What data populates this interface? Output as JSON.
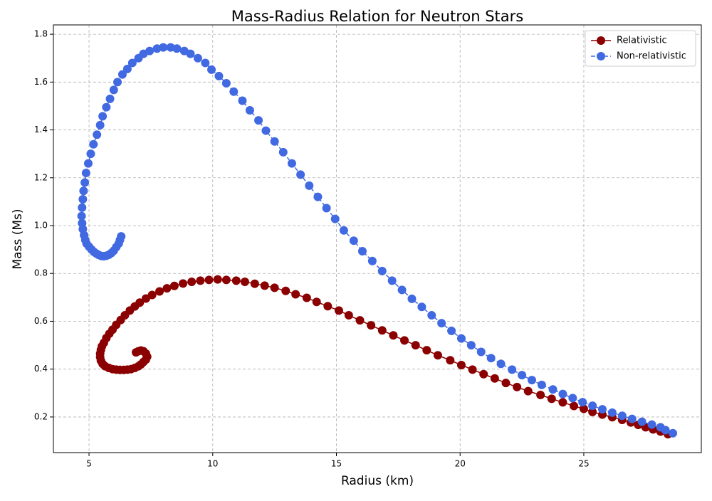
{
  "chart_data": {
    "type": "line",
    "title": "Mass-Radius Relation for Neutron Stars",
    "xlabel": "Radius (km)",
    "ylabel": "Mass (Ms)",
    "xlim": [
      3.56,
      29.75
    ],
    "ylim": [
      0.051,
      1.839
    ],
    "xticks": [
      5,
      10,
      15,
      20,
      25
    ],
    "yticks": [
      0.2,
      0.4,
      0.6,
      0.8,
      {
        "value": 1.0,
        "label": "1.0"
      },
      1.2,
      1.4,
      1.6,
      1.8
    ],
    "grid": true,
    "legend": "upper right",
    "series": [
      {
        "name": "Relativistic",
        "color": "#8b0000",
        "linestyle": "solid",
        "x": [
          6.9,
          7.0,
          7.1,
          7.2,
          7.3,
          7.35,
          7.3,
          7.2,
          7.1,
          7.0,
          6.85,
          6.7,
          6.55,
          6.4,
          6.25,
          6.1,
          5.95,
          5.8,
          5.65,
          5.55,
          5.48,
          5.45,
          5.45,
          5.48,
          5.52,
          5.6,
          5.7,
          5.82,
          5.95,
          6.1,
          6.28,
          6.45,
          6.65,
          6.85,
          7.05,
          7.3,
          7.55,
          7.85,
          8.15,
          8.45,
          8.8,
          9.15,
          9.5,
          9.85,
          10.2,
          10.55,
          10.95,
          11.3,
          11.7,
          12.1,
          12.5,
          12.95,
          13.35,
          13.8,
          14.2,
          14.65,
          15.1,
          15.5,
          15.95,
          16.4,
          16.85,
          17.3,
          17.75,
          18.2,
          18.65,
          19.1,
          19.6,
          20.05,
          20.5,
          20.95,
          21.4,
          21.85,
          22.3,
          22.75,
          23.25,
          23.7,
          24.15,
          24.6,
          25.0,
          25.35,
          25.75,
          26.15,
          26.55,
          26.9,
          27.2,
          27.5,
          27.8,
          28.1,
          28.4
        ],
        "values": [
          0.47,
          0.475,
          0.478,
          0.475,
          0.465,
          0.452,
          0.44,
          0.43,
          0.42,
          0.412,
          0.405,
          0.4,
          0.398,
          0.397,
          0.397,
          0.398,
          0.4,
          0.405,
          0.412,
          0.422,
          0.435,
          0.45,
          0.465,
          0.48,
          0.495,
          0.51,
          0.53,
          0.548,
          0.565,
          0.585,
          0.605,
          0.625,
          0.645,
          0.662,
          0.678,
          0.695,
          0.71,
          0.725,
          0.738,
          0.748,
          0.758,
          0.765,
          0.77,
          0.773,
          0.775,
          0.773,
          0.77,
          0.765,
          0.757,
          0.749,
          0.74,
          0.727,
          0.713,
          0.698,
          0.681,
          0.663,
          0.645,
          0.625,
          0.604,
          0.583,
          0.562,
          0.541,
          0.52,
          0.5,
          0.479,
          0.458,
          0.437,
          0.417,
          0.398,
          0.379,
          0.361,
          0.342,
          0.325,
          0.308,
          0.292,
          0.276,
          0.261,
          0.246,
          0.234,
          0.221,
          0.21,
          0.199,
          0.188,
          0.177,
          0.167,
          0.157,
          0.148,
          0.139,
          0.128
        ]
      },
      {
        "name": "Non-relativistic",
        "color": "#4169e1",
        "linestyle": "dashed",
        "x": [
          6.3,
          6.25,
          6.2,
          6.1,
          6.0,
          5.9,
          5.8,
          5.7,
          5.6,
          5.5,
          5.4,
          5.3,
          5.2,
          5.1,
          5.0,
          4.9,
          4.85,
          4.8,
          4.75,
          4.72,
          4.7,
          4.72,
          4.75,
          4.78,
          4.83,
          4.88,
          4.97,
          5.07,
          5.18,
          5.32,
          5.45,
          5.55,
          5.7,
          5.85,
          6.0,
          6.15,
          6.35,
          6.55,
          6.75,
          7.0,
          7.2,
          7.45,
          7.75,
          8.0,
          8.3,
          8.55,
          8.85,
          9.1,
          9.4,
          9.7,
          9.95,
          10.25,
          10.55,
          10.85,
          11.2,
          11.5,
          11.85,
          12.15,
          12.5,
          12.85,
          13.2,
          13.55,
          13.9,
          14.25,
          14.6,
          14.95,
          15.3,
          15.7,
          16.05,
          16.45,
          16.85,
          17.25,
          17.65,
          18.05,
          18.45,
          18.85,
          19.25,
          19.65,
          20.05,
          20.45,
          20.85,
          21.25,
          21.65,
          22.1,
          22.5,
          22.9,
          23.3,
          23.75,
          24.15,
          24.55,
          24.95,
          25.35,
          25.75,
          26.15,
          26.55,
          26.95,
          27.35,
          27.75,
          28.1,
          28.3,
          28.6
        ],
        "values": [
          0.955,
          0.94,
          0.925,
          0.91,
          0.895,
          0.885,
          0.878,
          0.874,
          0.872,
          0.873,
          0.877,
          0.883,
          0.89,
          0.9,
          0.912,
          0.925,
          0.94,
          0.96,
          0.985,
          1.01,
          1.04,
          1.075,
          1.11,
          1.145,
          1.18,
          1.22,
          1.26,
          1.3,
          1.34,
          1.38,
          1.42,
          1.457,
          1.495,
          1.53,
          1.567,
          1.6,
          1.632,
          1.655,
          1.68,
          1.7,
          1.718,
          1.73,
          1.74,
          1.745,
          1.745,
          1.74,
          1.73,
          1.718,
          1.7,
          1.68,
          1.652,
          1.625,
          1.595,
          1.56,
          1.522,
          1.482,
          1.44,
          1.397,
          1.352,
          1.307,
          1.26,
          1.213,
          1.167,
          1.12,
          1.073,
          1.028,
          0.98,
          0.937,
          0.893,
          0.852,
          0.81,
          0.77,
          0.731,
          0.694,
          0.66,
          0.625,
          0.592,
          0.56,
          0.528,
          0.5,
          0.472,
          0.446,
          0.422,
          0.398,
          0.375,
          0.354,
          0.334,
          0.315,
          0.296,
          0.279,
          0.262,
          0.247,
          0.232,
          0.218,
          0.205,
          0.192,
          0.18,
          0.168,
          0.157,
          0.145,
          0.132
        ]
      }
    ]
  }
}
